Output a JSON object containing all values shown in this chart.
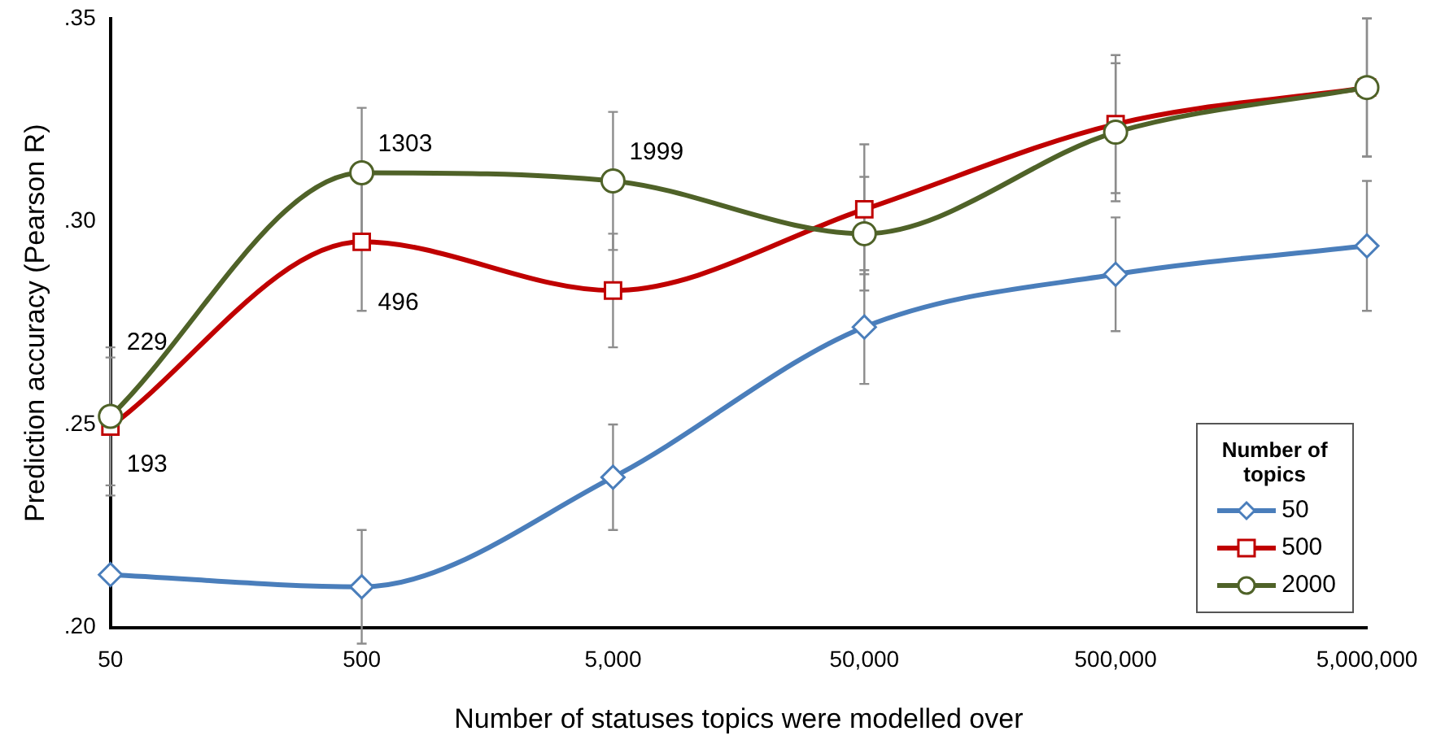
{
  "chart_data": {
    "type": "line",
    "xlabel": "Number of statuses topics were modelled over",
    "ylabel": "Prediction accuracy (Pearson R)",
    "legend_title": "Number of topics",
    "legend": "bottom right",
    "grid": false,
    "categories": [
      "50",
      "500",
      "5,000",
      "50,000",
      "500,000",
      "5,000,000"
    ],
    "ylim": [
      0.2,
      0.35
    ],
    "yticks": [
      {
        "value": 0.2,
        "label": ".20"
      },
      {
        "value": 0.25,
        "label": ".25"
      },
      {
        "value": 0.3,
        "label": ".30"
      },
      {
        "value": 0.35,
        "label": ".35"
      }
    ],
    "series": [
      {
        "name": "50",
        "color": "#4a7ebb",
        "marker": "diamond",
        "values": [
          0.213,
          0.21,
          0.237,
          0.274,
          0.287,
          0.294
        ],
        "errors": [
          null,
          0.014,
          0.013,
          0.014,
          0.014,
          0.016
        ]
      },
      {
        "name": "500",
        "color": "#c00000",
        "marker": "square",
        "values": [
          0.2495,
          0.295,
          0.283,
          0.303,
          0.324,
          0.333
        ],
        "errors": [
          0.017,
          0.017,
          0.014,
          0.016,
          0.017,
          0.017
        ]
      },
      {
        "name": "2000",
        "color": "#4f6228",
        "marker": "circle",
        "values": [
          0.252,
          0.312,
          0.31,
          0.297,
          0.322,
          0.333
        ],
        "errors": [
          0.017,
          0.016,
          0.017,
          0.014,
          0.017,
          0.017
        ]
      }
    ],
    "annotations": [
      {
        "text": "229",
        "x": "50",
        "y": 0.27
      },
      {
        "text": "193",
        "x": "50",
        "y": 0.24
      },
      {
        "text": "1303",
        "x": "500",
        "y": 0.319
      },
      {
        "text": "496",
        "x": "500",
        "y": 0.28
      },
      {
        "text": "1999",
        "x": "5,000",
        "y": 0.317
      }
    ]
  }
}
